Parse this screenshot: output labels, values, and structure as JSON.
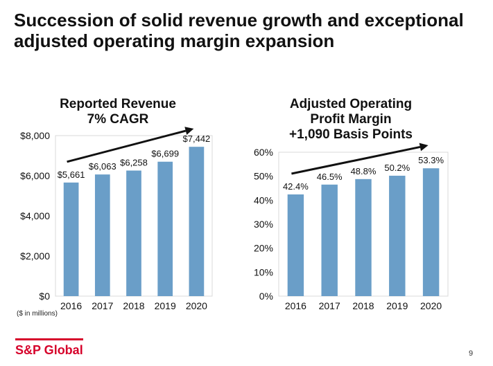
{
  "slide": {
    "title": "Succession of solid revenue growth and exceptional adjusted operating margin expansion",
    "footnote": "($ in millions)",
    "logo_text": "S&P Global",
    "page_number": "9"
  },
  "colors": {
    "bar": "#6a9ec8",
    "gridline": "#d9d9d9",
    "logo": "#d6002a"
  },
  "chart_data": [
    {
      "type": "bar",
      "title_lines": [
        "Reported Revenue",
        "7% CAGR"
      ],
      "categories": [
        "2016",
        "2017",
        "2018",
        "2019",
        "2020"
      ],
      "values": [
        5661,
        6063,
        6258,
        6699,
        7442
      ],
      "data_labels": [
        "$5,661",
        "$6,063",
        "$6,258",
        "$6,699",
        "$7,442"
      ],
      "ylim": [
        0,
        8000
      ],
      "yticks": [
        0,
        2000,
        4000,
        6000,
        8000
      ],
      "ytick_labels": [
        "$0",
        "$2,000",
        "$4,000",
        "$6,000",
        "$8,000"
      ],
      "grid": false,
      "trend_arrow": true
    },
    {
      "type": "bar",
      "title_lines": [
        "Adjusted Operating",
        "Profit Margin",
        "+1,090 Basis Points"
      ],
      "categories": [
        "2016",
        "2017",
        "2018",
        "2019",
        "2020"
      ],
      "values": [
        42.4,
        46.5,
        48.8,
        50.2,
        53.3
      ],
      "data_labels": [
        "42.4%",
        "46.5%",
        "48.8%",
        "50.2%",
        "53.3%"
      ],
      "ylim": [
        0,
        60
      ],
      "yticks": [
        0,
        10,
        20,
        30,
        40,
        50,
        60
      ],
      "ytick_labels": [
        "0%",
        "10%",
        "20%",
        "30%",
        "40%",
        "50%",
        "60%"
      ],
      "grid": false,
      "trend_arrow": true
    }
  ]
}
